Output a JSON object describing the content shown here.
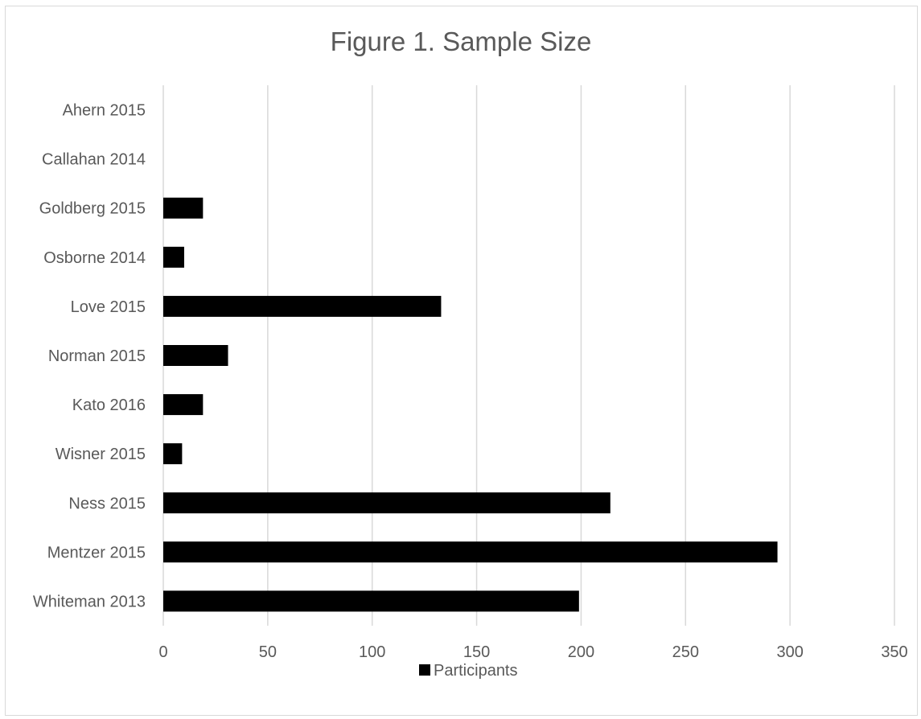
{
  "chart_data": {
    "type": "bar",
    "orientation": "horizontal",
    "title": "Figure 1. Sample Size",
    "categories": [
      "Ahern 2015",
      "Callahan 2014",
      "Goldberg 2015",
      "Osborne 2014",
      "Love 2015",
      "Norman 2015",
      "Kato 2016",
      "Wisner 2015",
      "Ness 2015",
      "Mentzer 2015",
      "Whiteman 2013"
    ],
    "series": [
      {
        "name": "Participants",
        "color": "#000000",
        "values": [
          0,
          0,
          19,
          10,
          133,
          31,
          19,
          9,
          214,
          294,
          199
        ]
      }
    ],
    "xlim": [
      0,
      350
    ],
    "xticks": [
      0,
      50,
      100,
      150,
      200,
      250,
      300,
      350
    ],
    "grid": "vertical",
    "legend": "bottom",
    "colors": {
      "bar": "#000000",
      "grid": "#d9d9d9",
      "text": "#595959"
    }
  }
}
